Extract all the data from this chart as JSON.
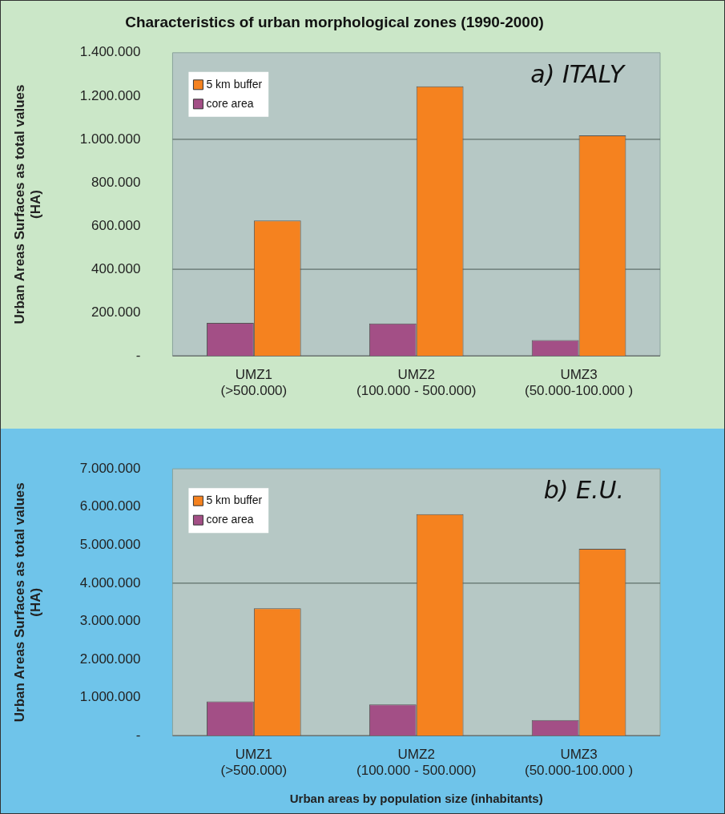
{
  "chart_data": [
    {
      "type": "bar",
      "title": "Characteristics of urban morphological zones (1990-2000)",
      "ylabel": "Urban Areas Surfaces as total values\n(HA)",
      "annotations": [
        "a) ITALY"
      ],
      "categories": [
        "UMZ1\n(>500.000)",
        "UMZ2\n(100.000 - 500.000)",
        "UMZ3\n(50.000-100.000 )"
      ],
      "series": [
        {
          "name": "core area",
          "color": "#a34f86",
          "values": [
            152000,
            150000,
            73000
          ]
        },
        {
          "name": "5 km buffer",
          "color": "#f5821f",
          "values": [
            625000,
            1245000,
            1018000
          ]
        }
      ],
      "ylim": [
        0,
        1400000
      ],
      "yticks": [
        {
          "value": 0,
          "label": "-"
        },
        {
          "value": 200000,
          "label": "200.000"
        },
        {
          "value": 400000,
          "label": "400.000"
        },
        {
          "value": 600000,
          "label": "600.000"
        },
        {
          "value": 800000,
          "label": "800.000"
        },
        {
          "value": 1000000,
          "label": "1.000.000"
        },
        {
          "value": 1200000,
          "label": "1.200.000"
        },
        {
          "value": 1400000,
          "label": "1.400.000"
        }
      ],
      "ref_lines": [
        {
          "axis": "y",
          "value": 400000
        },
        {
          "axis": "y",
          "value": 1000000
        }
      ],
      "legend": "top left"
    },
    {
      "type": "bar",
      "xlabel": "Urban areas by population size (inhabitants)",
      "ylabel": "Urban Areas Surfaces as total values\n(HA)",
      "annotations": [
        "b) E.U."
      ],
      "categories": [
        "UMZ1\n(>500.000)",
        "UMZ2\n(100.000 - 500.000)",
        "UMZ3\n(50.000-100.000 )"
      ],
      "series": [
        {
          "name": "core area",
          "color": "#a34f86",
          "values": [
            900000,
            820000,
            410000
          ]
        },
        {
          "name": "5 km buffer",
          "color": "#f5821f",
          "values": [
            3340000,
            5810000,
            4900000
          ]
        }
      ],
      "ylim": [
        0,
        7000000
      ],
      "yticks": [
        {
          "value": 0,
          "label": "-"
        },
        {
          "value": 1000000,
          "label": "1.000.000"
        },
        {
          "value": 2000000,
          "label": "2.000.000"
        },
        {
          "value": 3000000,
          "label": "3.000.000"
        },
        {
          "value": 4000000,
          "label": "4.000.000"
        },
        {
          "value": 5000000,
          "label": "5.000.000"
        },
        {
          "value": 6000000,
          "label": "6.000.000"
        },
        {
          "value": 7000000,
          "label": "7.000.000"
        }
      ],
      "ref_lines": [
        {
          "axis": "y",
          "value": 4000000
        }
      ],
      "legend": "top left"
    }
  ]
}
